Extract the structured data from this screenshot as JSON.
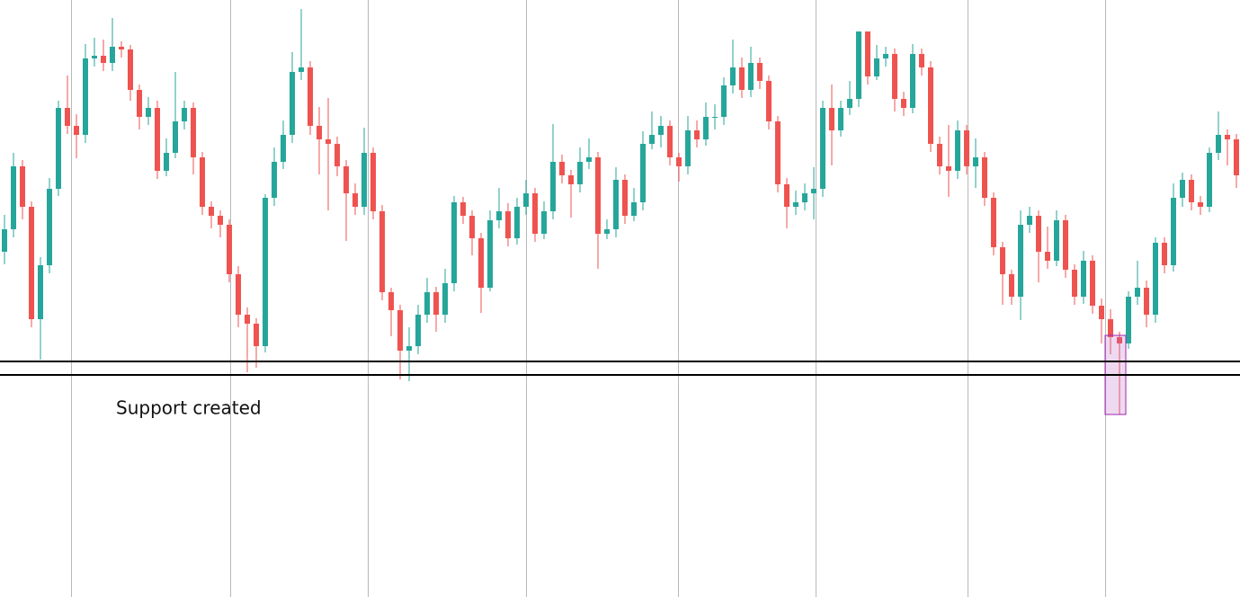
{
  "chart_data": {
    "type": "candlestick",
    "ylim": [
      0,
      664
    ],
    "up_color": "#26a69a",
    "down_color": "#ef5350",
    "open": [
      384,
      409,
      479,
      434,
      309,
      369,
      454,
      544,
      524,
      514,
      599,
      602,
      594,
      612,
      609,
      564,
      534,
      544,
      474,
      494,
      529,
      544,
      489,
      434,
      424,
      414,
      359,
      314,
      304,
      279,
      444,
      484,
      514,
      584,
      589,
      524,
      509,
      504,
      479,
      449,
      434,
      494,
      429,
      339,
      319,
      274,
      279,
      314,
      339,
      314,
      349,
      439,
      424,
      399,
      344,
      419,
      429,
      399,
      434,
      449,
      404,
      429,
      484,
      469,
      459,
      484,
      489,
      404,
      409,
      464,
      424,
      439,
      504,
      514,
      524,
      489,
      479,
      519,
      509,
      534,
      534,
      569,
      589,
      564,
      594,
      574,
      529,
      459,
      434,
      439,
      449,
      454,
      544,
      519,
      544,
      554,
      629,
      579,
      599,
      604,
      554,
      544,
      604,
      589,
      504,
      479,
      474,
      519,
      479,
      489,
      444,
      389,
      359,
      334,
      414,
      424,
      384,
      374,
      419,
      364,
      334,
      374,
      324,
      309,
      289,
      282,
      334,
      344,
      314,
      394,
      369,
      444,
      464,
      439,
      434,
      494,
      514,
      509
    ],
    "high": [
      425,
      494,
      486,
      440,
      378,
      466,
      552,
      580,
      537,
      615,
      622,
      620,
      644,
      618,
      614,
      570,
      556,
      552,
      510,
      584,
      552,
      550,
      495,
      440,
      430,
      420,
      368,
      322,
      310,
      448,
      500,
      530,
      606,
      654,
      596,
      545,
      555,
      512,
      486,
      460,
      522,
      500,
      436,
      344,
      325,
      300,
      325,
      355,
      345,
      365,
      446,
      445,
      430,
      405,
      430,
      455,
      438,
      444,
      464,
      455,
      440,
      526,
      492,
      475,
      500,
      510,
      495,
      420,
      478,
      470,
      455,
      518,
      540,
      535,
      530,
      494,
      535,
      530,
      550,
      548,
      578,
      620,
      600,
      612,
      600,
      580,
      535,
      466,
      452,
      460,
      478,
      552,
      570,
      552,
      574,
      629,
      629,
      614,
      612,
      610,
      562,
      615,
      610,
      596,
      512,
      525,
      530,
      525,
      510,
      495,
      450,
      395,
      364,
      430,
      434,
      430,
      412,
      430,
      425,
      370,
      385,
      380,
      332,
      320,
      295,
      340,
      374,
      352,
      400,
      400,
      460,
      472,
      470,
      446,
      500,
      540,
      520,
      515
    ],
    "low": [
      370,
      400,
      420,
      300,
      264,
      360,
      446,
      515,
      488,
      505,
      590,
      585,
      585,
      600,
      552,
      520,
      525,
      465,
      468,
      488,
      520,
      470,
      425,
      410,
      400,
      350,
      300,
      250,
      255,
      272,
      435,
      476,
      505,
      575,
      514,
      470,
      430,
      468,
      396,
      425,
      425,
      420,
      330,
      290,
      242,
      240,
      270,
      305,
      295,
      305,
      340,
      415,
      380,
      316,
      340,
      410,
      390,
      392,
      425,
      395,
      398,
      420,
      460,
      422,
      450,
      476,
      365,
      398,
      400,
      415,
      418,
      430,
      498,
      500,
      480,
      462,
      470,
      500,
      502,
      520,
      525,
      560,
      555,
      556,
      565,
      520,
      450,
      410,
      425,
      430,
      420,
      445,
      480,
      512,
      536,
      545,
      570,
      575,
      590,
      540,
      535,
      538,
      580,
      495,
      470,
      445,
      465,
      470,
      455,
      435,
      380,
      325,
      325,
      308,
      405,
      350,
      365,
      368,
      355,
      325,
      326,
      315,
      282,
      270,
      203,
      276,
      325,
      300,
      305,
      360,
      362,
      434,
      430,
      425,
      428,
      486,
      480,
      455
    ],
    "close": [
      409,
      479,
      434,
      309,
      369,
      454,
      544,
      524,
      514,
      599,
      602,
      594,
      612,
      609,
      564,
      534,
      544,
      474,
      494,
      529,
      544,
      489,
      434,
      424,
      414,
      359,
      314,
      304,
      279,
      444,
      484,
      514,
      584,
      589,
      524,
      509,
      504,
      479,
      449,
      434,
      494,
      429,
      339,
      319,
      274,
      279,
      314,
      339,
      314,
      349,
      439,
      424,
      399,
      344,
      419,
      429,
      399,
      434,
      449,
      404,
      429,
      484,
      469,
      459,
      484,
      489,
      404,
      409,
      464,
      424,
      439,
      504,
      514,
      524,
      489,
      479,
      519,
      509,
      534,
      534,
      569,
      589,
      564,
      594,
      574,
      529,
      459,
      434,
      439,
      449,
      454,
      544,
      519,
      544,
      554,
      629,
      579,
      599,
      604,
      554,
      544,
      604,
      589,
      504,
      479,
      474,
      519,
      479,
      489,
      444,
      389,
      359,
      334,
      414,
      424,
      384,
      374,
      419,
      364,
      334,
      374,
      324,
      309,
      289,
      282,
      334,
      344,
      314,
      394,
      369,
      444,
      464,
      439,
      434,
      494,
      514,
      509,
      469
    ],
    "hlines": [
      262,
      247
    ],
    "line_color": "#000000",
    "annotation": "Support created"
  }
}
